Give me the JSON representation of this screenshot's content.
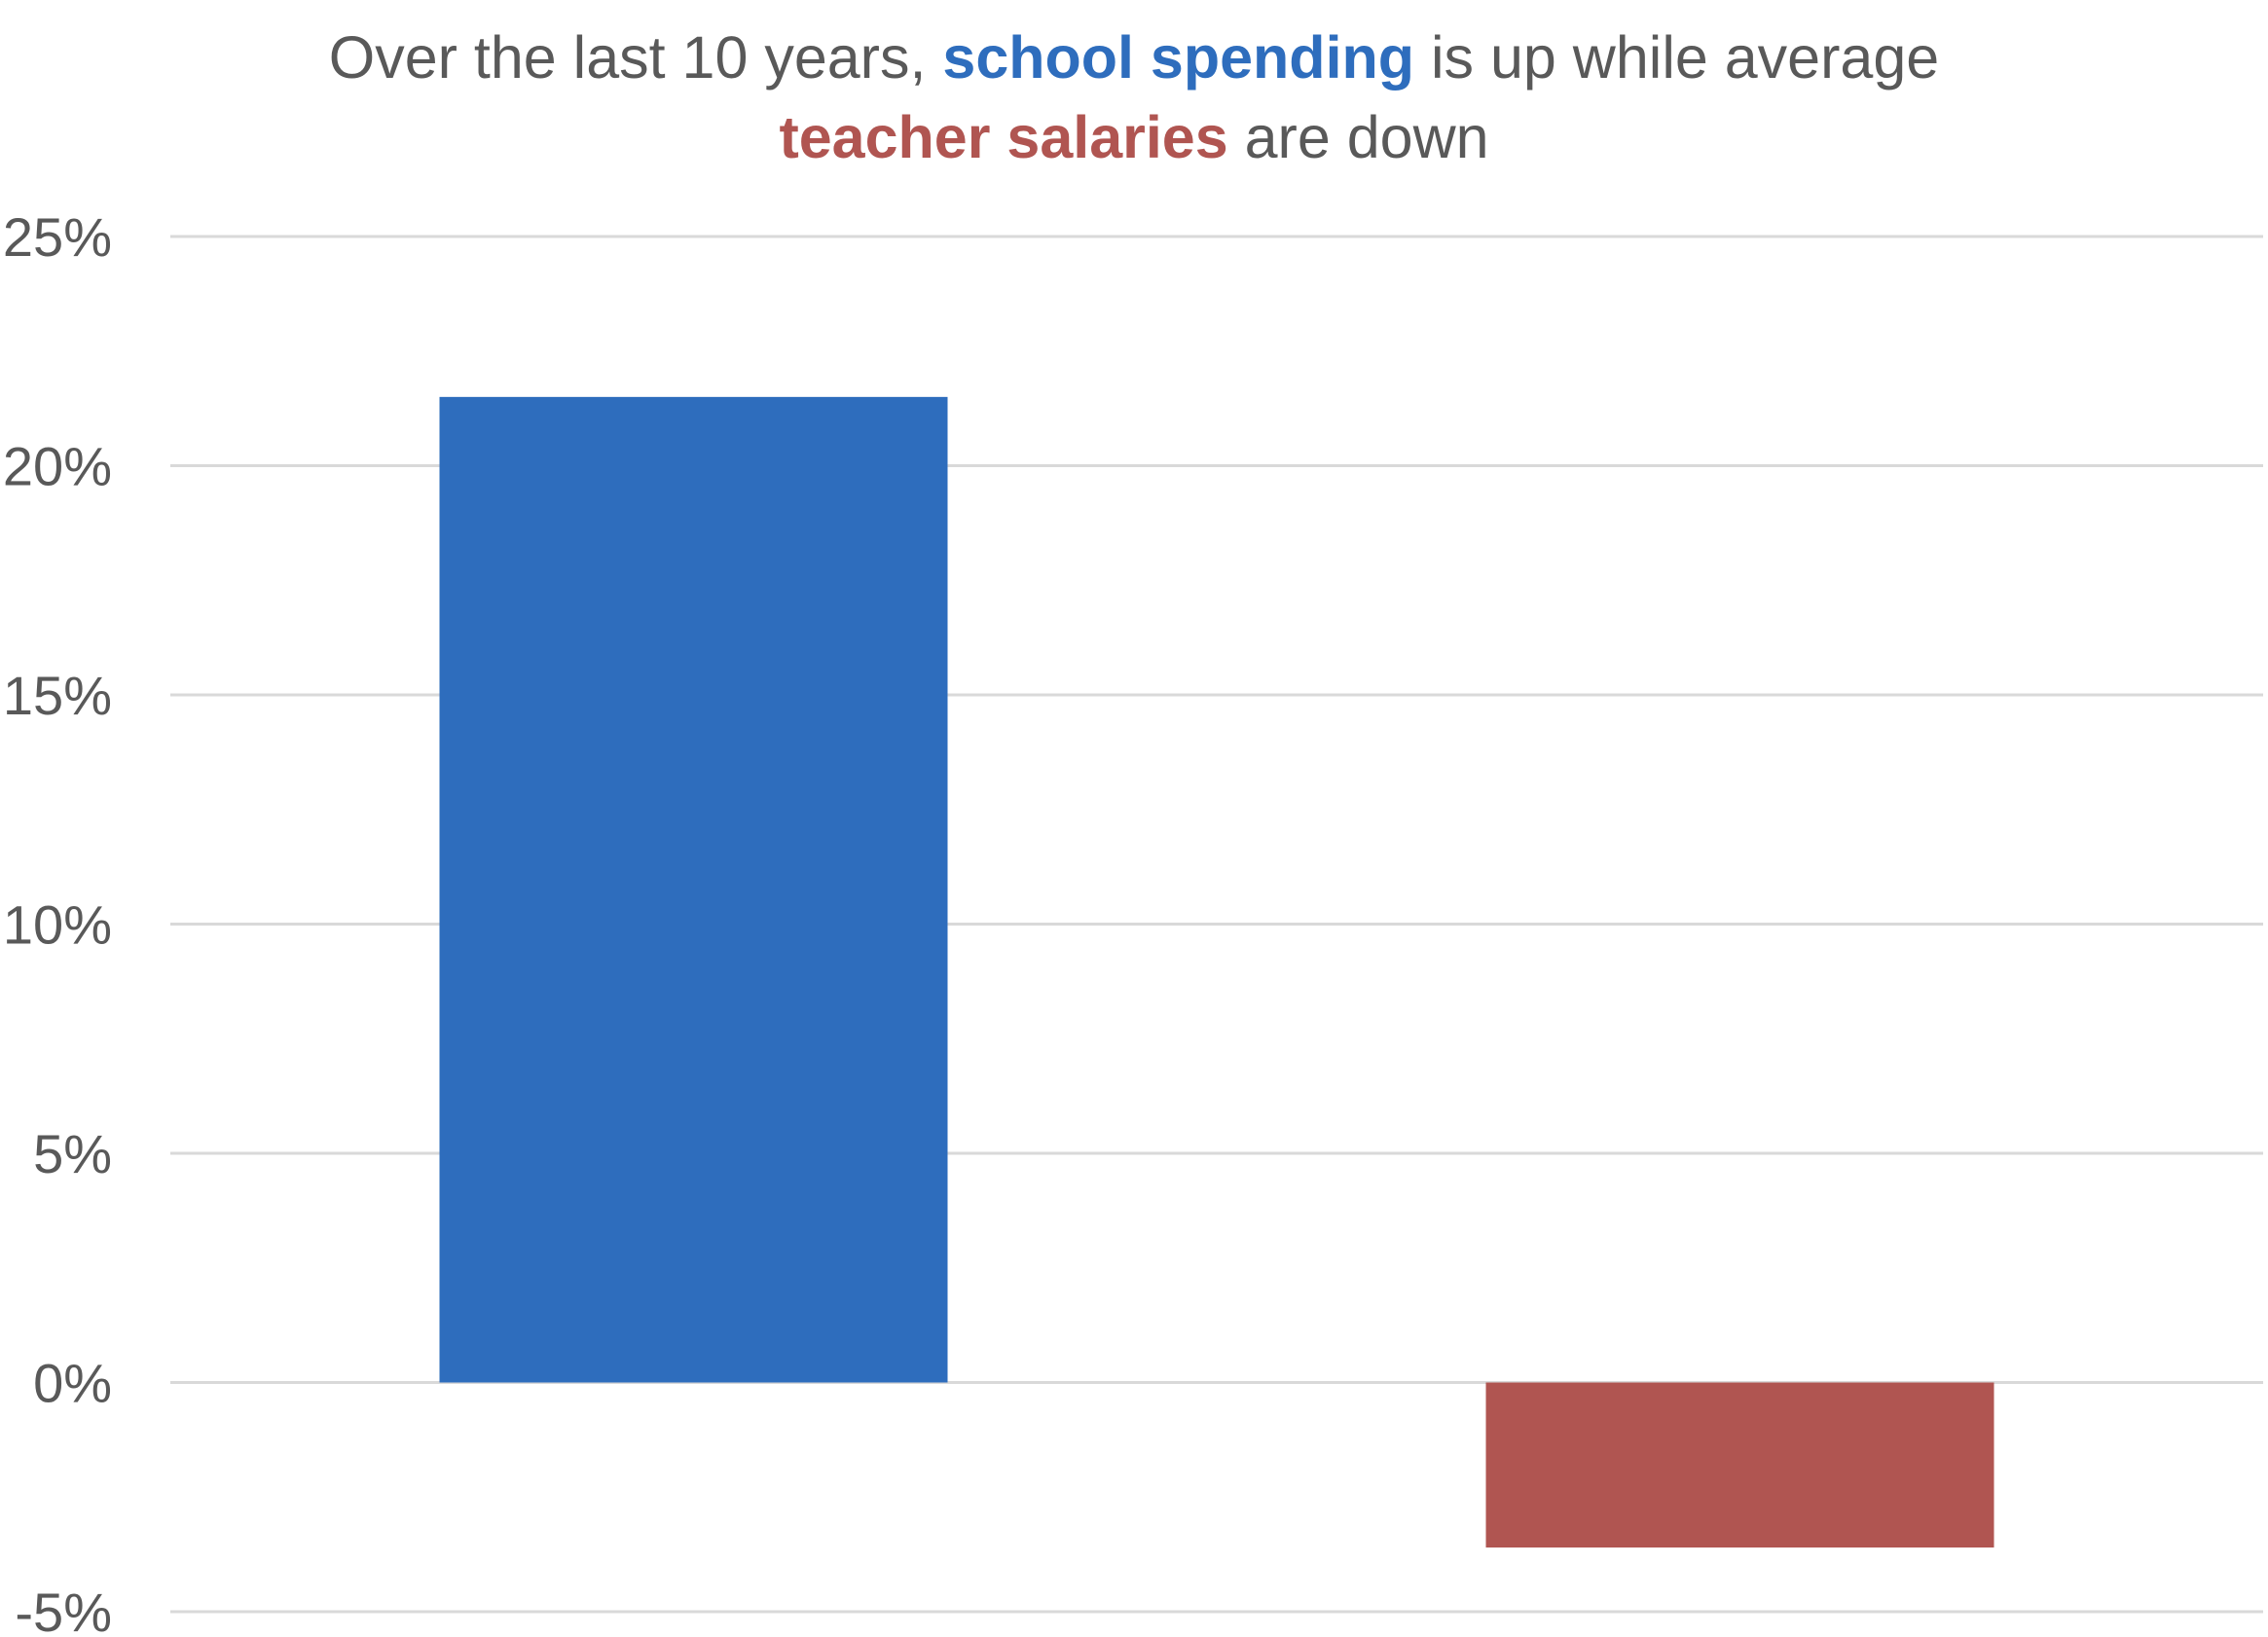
{
  "title": {
    "line1_prefix": "Over the last 10 years, ",
    "line1_highlight": "school spending",
    "line1_suffix": " is up while average",
    "line2_highlight": "teacher salaries",
    "line2_suffix": " are down"
  },
  "colors": {
    "school_spending": "#2E6DBD",
    "teacher_salaries": "#B05551",
    "gridline": "#D9D9D9",
    "text": "#595959"
  },
  "chart_data": {
    "type": "bar",
    "title": "Over the last 10 years, school spending is up while average teacher salaries are down",
    "categories": [
      "",
      ""
    ],
    "values": [
      21.5,
      -3.6
    ],
    "bar_colors": [
      "#2E6DBD",
      "#B05551"
    ],
    "ylim": [
      -5,
      25
    ],
    "yticks": [
      25,
      20,
      15,
      10,
      5,
      0,
      -5
    ],
    "ytick_labels": [
      "25%",
      "20%",
      "15%",
      "10%",
      "5%",
      "0%",
      "-5%"
    ],
    "grid": true,
    "legend": "none",
    "xlabel": "",
    "ylabel": ""
  }
}
